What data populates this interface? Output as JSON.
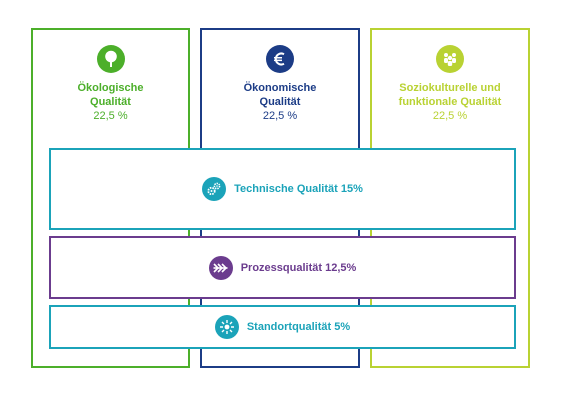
{
  "pillars": {
    "ecological": {
      "title_line1": "Ökologische",
      "title_line2": "Qualität",
      "percent": "22,5 %",
      "icon": "tree-icon",
      "color": "#4caf2a"
    },
    "economic": {
      "title_line1": "Ökonomische",
      "title_line2": "Qualität",
      "percent": "22,5 %",
      "icon": "euro-icon",
      "color": "#1c3c86"
    },
    "sociocultural": {
      "title_line1": "Soziokulturelle und",
      "title_line2": "funktionale Qualität",
      "percent": "22,5 %",
      "icon": "people-icon",
      "color": "#b9d233"
    }
  },
  "bands": {
    "technical": {
      "label": "Technische Qualität 15%",
      "icon": "gears-icon",
      "color": "#1ba3b9"
    },
    "process": {
      "label": "Prozessqualität 12,5%",
      "icon": "arrows-icon",
      "color": "#6b3c8e"
    },
    "site": {
      "label": "Standortqualität 5%",
      "icon": "location-burst-icon",
      "color": "#1ba3b9"
    }
  }
}
